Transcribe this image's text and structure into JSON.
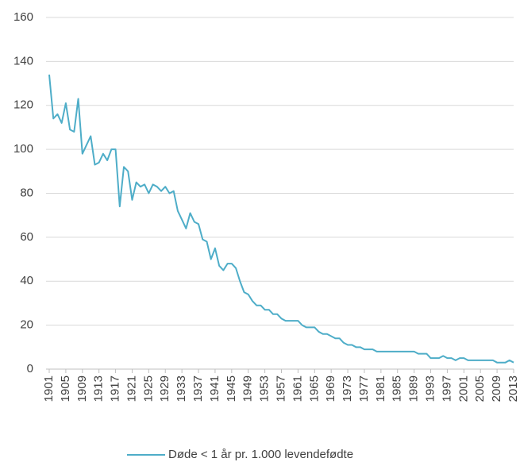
{
  "chart_data": {
    "type": "line",
    "x": [
      1901,
      1902,
      1903,
      1904,
      1905,
      1906,
      1907,
      1908,
      1909,
      1910,
      1911,
      1912,
      1913,
      1914,
      1915,
      1916,
      1917,
      1918,
      1919,
      1920,
      1921,
      1922,
      1923,
      1924,
      1925,
      1926,
      1927,
      1928,
      1929,
      1930,
      1931,
      1932,
      1933,
      1934,
      1935,
      1936,
      1937,
      1938,
      1939,
      1940,
      1941,
      1942,
      1943,
      1944,
      1945,
      1946,
      1947,
      1948,
      1949,
      1950,
      1951,
      1952,
      1953,
      1954,
      1955,
      1956,
      1957,
      1958,
      1959,
      1960,
      1961,
      1962,
      1963,
      1964,
      1965,
      1966,
      1967,
      1968,
      1969,
      1970,
      1971,
      1972,
      1973,
      1974,
      1975,
      1976,
      1977,
      1978,
      1979,
      1980,
      1981,
      1982,
      1983,
      1984,
      1985,
      1986,
      1987,
      1988,
      1989,
      1990,
      1991,
      1992,
      1993,
      1994,
      1995,
      1996,
      1997,
      1998,
      1999,
      2000,
      2001,
      2002,
      2003,
      2004,
      2005,
      2006,
      2007,
      2008,
      2009,
      2010,
      2011,
      2012,
      2013
    ],
    "series": [
      {
        "name": "Døde < 1 år pr. 1.000 levendefødte",
        "color": "#4eadc8",
        "values": [
          134,
          114,
          116,
          112,
          121,
          109,
          108,
          123,
          98,
          102,
          106,
          93,
          94,
          98,
          95,
          100,
          100,
          74,
          92,
          90,
          77,
          85,
          83,
          84,
          80,
          84,
          83,
          81,
          83,
          80,
          81,
          72,
          68,
          64,
          71,
          67,
          66,
          59,
          58,
          50,
          55,
          47,
          45,
          48,
          48,
          46,
          40,
          35,
          34,
          31,
          29,
          29,
          27,
          27,
          25,
          25,
          23,
          22,
          22,
          22,
          22,
          20,
          19,
          19,
          19,
          17,
          16,
          16,
          15,
          14,
          14,
          12,
          11,
          11,
          10,
          10,
          9,
          9,
          9,
          8,
          8,
          8,
          8,
          8,
          8,
          8,
          8,
          8,
          8,
          7,
          7,
          7,
          5,
          5,
          5,
          6,
          5,
          5,
          4,
          5,
          5,
          4,
          4,
          4,
          4,
          4,
          4,
          4,
          3,
          3,
          3,
          4,
          3
        ]
      }
    ],
    "xlim": [
      1901,
      2013
    ],
    "xticks": [
      1901,
      1905,
      1909,
      1913,
      1917,
      1921,
      1925,
      1929,
      1933,
      1937,
      1941,
      1945,
      1949,
      1953,
      1957,
      1961,
      1965,
      1969,
      1973,
      1977,
      1981,
      1985,
      1989,
      1993,
      1997,
      2001,
      2005,
      2009,
      2013
    ],
    "ylim": [
      0,
      160
    ],
    "yticks": [
      0,
      20,
      40,
      60,
      80,
      100,
      120,
      140,
      160
    ],
    "grid": true,
    "legend": "bottom"
  }
}
